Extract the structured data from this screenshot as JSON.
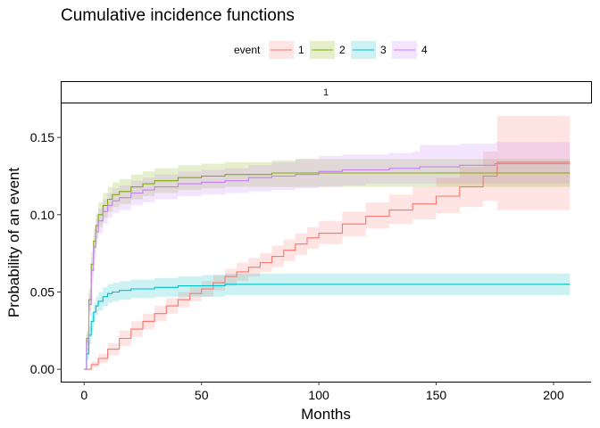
{
  "chart_data": {
    "type": "line",
    "title": "Cumulative incidence functions",
    "xlabel": "Months",
    "ylabel": "Probability of an event",
    "facet_label": "1",
    "legend": {
      "title": "event",
      "position": "top"
    },
    "xlim": [
      -10,
      216
    ],
    "ylim": [
      -0.008,
      0.172
    ],
    "xticks": [
      0,
      50,
      100,
      150,
      200
    ],
    "yticks": [
      0.0,
      0.05,
      0.1,
      0.15
    ],
    "ytick_labels": [
      "0.00",
      "0.05",
      "0.10",
      "0.15"
    ],
    "grid": false,
    "series": [
      {
        "name": "1",
        "color": "#F8766D",
        "x": [
          0,
          3,
          6,
          10,
          15,
          20,
          25,
          30,
          35,
          40,
          45,
          50,
          55,
          60,
          65,
          70,
          75,
          80,
          85,
          90,
          95,
          100,
          110,
          120,
          130,
          140,
          150,
          160,
          170,
          176,
          207
        ],
        "y": [
          0.0,
          0.003,
          0.007,
          0.013,
          0.02,
          0.026,
          0.031,
          0.036,
          0.041,
          0.045,
          0.049,
          0.052,
          0.056,
          0.06,
          0.063,
          0.066,
          0.069,
          0.073,
          0.077,
          0.081,
          0.085,
          0.088,
          0.094,
          0.099,
          0.103,
          0.107,
          0.112,
          0.118,
          0.125,
          0.134,
          0.134
        ],
        "lower": [
          0.0,
          0.001,
          0.004,
          0.009,
          0.015,
          0.021,
          0.026,
          0.031,
          0.036,
          0.04,
          0.044,
          0.047,
          0.051,
          0.054,
          0.057,
          0.06,
          0.063,
          0.066,
          0.07,
          0.074,
          0.078,
          0.081,
          0.086,
          0.091,
          0.094,
          0.097,
          0.101,
          0.105,
          0.109,
          0.103,
          0.103
        ],
        "upper": [
          0.0,
          0.005,
          0.01,
          0.017,
          0.025,
          0.031,
          0.036,
          0.041,
          0.046,
          0.05,
          0.054,
          0.057,
          0.061,
          0.065,
          0.069,
          0.072,
          0.075,
          0.08,
          0.084,
          0.088,
          0.092,
          0.096,
          0.102,
          0.108,
          0.113,
          0.118,
          0.124,
          0.131,
          0.141,
          0.164,
          0.164
        ]
      },
      {
        "name": "2",
        "color": "#7CAE00",
        "x": [
          0,
          1,
          2,
          3,
          4,
          5,
          6,
          8,
          10,
          12,
          15,
          20,
          25,
          30,
          40,
          50,
          60,
          70,
          80,
          90,
          100,
          120,
          150,
          207
        ],
        "y": [
          0.0,
          0.02,
          0.045,
          0.068,
          0.083,
          0.093,
          0.1,
          0.106,
          0.11,
          0.113,
          0.115,
          0.118,
          0.12,
          0.122,
          0.124,
          0.125,
          0.126,
          0.126,
          0.127,
          0.127,
          0.127,
          0.127,
          0.127,
          0.127
        ],
        "lower": [
          0.0,
          0.015,
          0.038,
          0.06,
          0.075,
          0.085,
          0.092,
          0.098,
          0.102,
          0.105,
          0.107,
          0.11,
          0.112,
          0.114,
          0.116,
          0.117,
          0.118,
          0.118,
          0.118,
          0.118,
          0.118,
          0.118,
          0.118,
          0.118
        ],
        "upper": [
          0.0,
          0.025,
          0.052,
          0.076,
          0.091,
          0.101,
          0.108,
          0.114,
          0.118,
          0.121,
          0.123,
          0.126,
          0.128,
          0.13,
          0.132,
          0.133,
          0.134,
          0.134,
          0.135,
          0.136,
          0.136,
          0.136,
          0.136,
          0.136
        ]
      },
      {
        "name": "3",
        "color": "#00BFC4",
        "x": [
          0,
          1,
          2,
          3,
          4,
          5,
          6,
          8,
          10,
          12,
          15,
          20,
          30,
          40,
          50,
          60,
          100,
          150,
          207
        ],
        "y": [
          0.0,
          0.01,
          0.022,
          0.031,
          0.037,
          0.041,
          0.044,
          0.047,
          0.049,
          0.05,
          0.051,
          0.052,
          0.053,
          0.054,
          0.054,
          0.055,
          0.055,
          0.055,
          0.055
        ],
        "lower": [
          0.0,
          0.006,
          0.016,
          0.025,
          0.031,
          0.035,
          0.038,
          0.041,
          0.043,
          0.044,
          0.045,
          0.046,
          0.047,
          0.047,
          0.047,
          0.048,
          0.048,
          0.048,
          0.048
        ],
        "upper": [
          0.0,
          0.014,
          0.028,
          0.037,
          0.043,
          0.047,
          0.05,
          0.053,
          0.055,
          0.056,
          0.057,
          0.058,
          0.059,
          0.06,
          0.061,
          0.062,
          0.062,
          0.062,
          0.062
        ]
      },
      {
        "name": "4",
        "color": "#C77CFF",
        "x": [
          0,
          1,
          2,
          3,
          4,
          5,
          6,
          8,
          10,
          12,
          15,
          20,
          25,
          30,
          40,
          50,
          60,
          70,
          80,
          90,
          100,
          110,
          120,
          130,
          140,
          143,
          160,
          175,
          207
        ],
        "y": [
          0.0,
          0.018,
          0.042,
          0.064,
          0.079,
          0.089,
          0.096,
          0.102,
          0.106,
          0.109,
          0.111,
          0.114,
          0.116,
          0.118,
          0.12,
          0.121,
          0.122,
          0.124,
          0.125,
          0.126,
          0.128,
          0.129,
          0.129,
          0.13,
          0.13,
          0.131,
          0.132,
          0.133,
          0.133
        ],
        "lower": [
          0.0,
          0.013,
          0.035,
          0.056,
          0.071,
          0.081,
          0.088,
          0.094,
          0.098,
          0.101,
          0.103,
          0.106,
          0.108,
          0.11,
          0.112,
          0.113,
          0.114,
          0.115,
          0.116,
          0.117,
          0.118,
          0.119,
          0.12,
          0.12,
          0.12,
          0.12,
          0.12,
          0.12,
          0.12
        ],
        "upper": [
          0.0,
          0.023,
          0.049,
          0.072,
          0.087,
          0.097,
          0.104,
          0.11,
          0.114,
          0.117,
          0.119,
          0.122,
          0.124,
          0.126,
          0.128,
          0.129,
          0.13,
          0.132,
          0.134,
          0.136,
          0.138,
          0.139,
          0.139,
          0.14,
          0.141,
          0.145,
          0.146,
          0.147,
          0.147
        ]
      }
    ]
  }
}
